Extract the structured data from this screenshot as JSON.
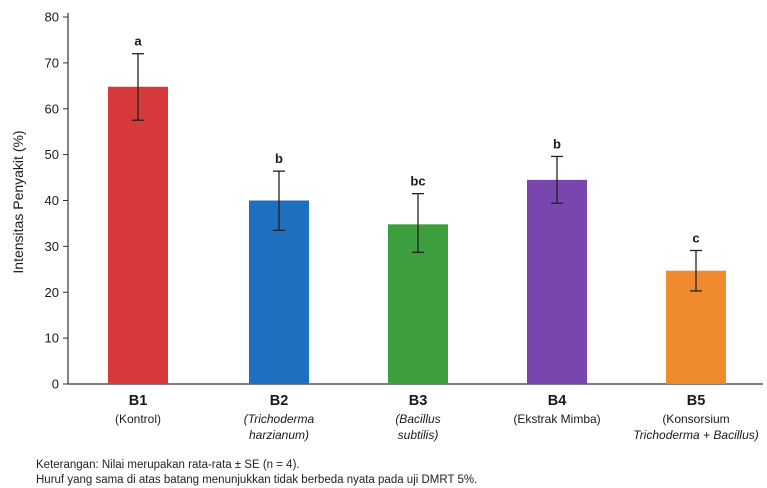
{
  "chart_data": {
    "type": "bar",
    "title": "",
    "xlabel": "",
    "ylabel": "Intensitas Penyakit (%)",
    "ylim": [
      0,
      80
    ],
    "yticks": [
      0,
      10,
      20,
      30,
      40,
      50,
      60,
      70,
      80
    ],
    "grid": false,
    "categories": [
      {
        "code": "B1",
        "desc": [
          "(Kontrol)"
        ],
        "italic": [
          false
        ]
      },
      {
        "code": "B2",
        "desc": [
          "(Trichoderma",
          "harzianum)"
        ],
        "italic": [
          true,
          true
        ]
      },
      {
        "code": "B3",
        "desc": [
          "(Bacillus",
          "subtilis)"
        ],
        "italic": [
          true,
          true
        ]
      },
      {
        "code": "B4",
        "desc": [
          "(Ekstrak Mimba)"
        ],
        "italic": [
          false
        ]
      },
      {
        "code": "B5",
        "desc": [
          "(Konsorsium",
          "Trichoderma + Bacillus)"
        ],
        "italic": [
          false,
          true
        ]
      }
    ],
    "values": [
      64.8,
      40.0,
      34.8,
      44.5,
      24.7
    ],
    "errors_low": [
      57.5,
      33.5,
      28.7,
      39.4,
      20.3
    ],
    "errors_high": [
      72.0,
      46.4,
      41.5,
      49.6,
      29.1
    ],
    "letters": [
      "a",
      "b",
      "bc",
      "b",
      "c"
    ],
    "colors": [
      "#d63a3a",
      "#1f6fc0",
      "#3c9e3c",
      "#7846ad",
      "#f08a2e"
    ]
  },
  "notes": [
    "Keterangan: Nilai merupakan rata-rata ± SE (n = 4).",
    "Huruf yang sama di atas batang menunjukkan tidak berbeda nyata pada uji DMRT 5%."
  ]
}
